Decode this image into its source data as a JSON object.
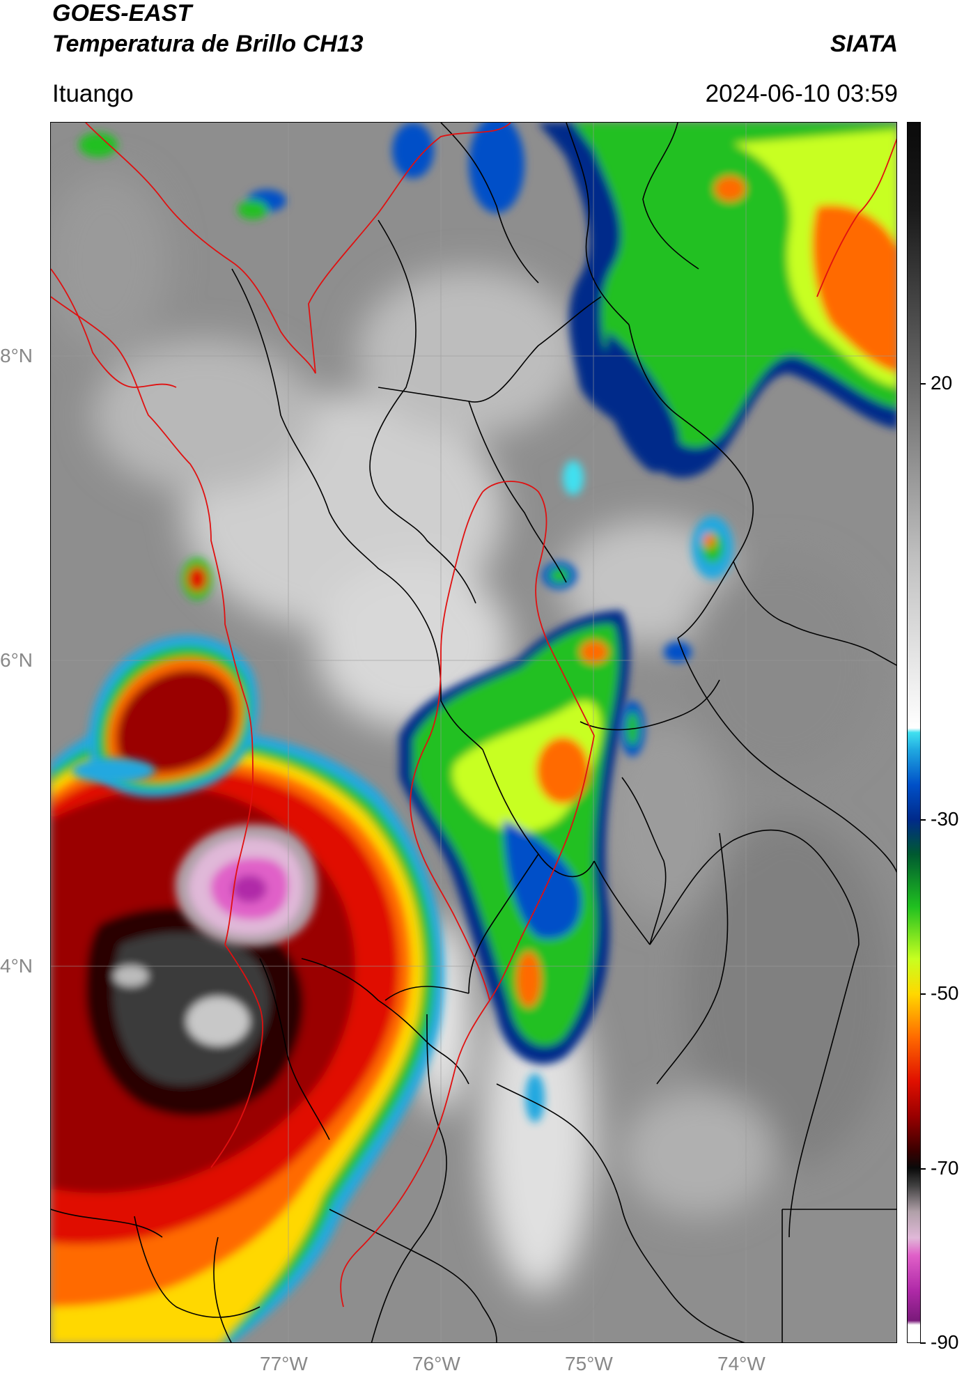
{
  "header": {
    "title_line1": "GOES-EAST",
    "title_line2": "Temperatura de Brillo CH13",
    "region": "Ituango",
    "brand": "SIATA",
    "datetime": "2024-06-10 03:59"
  },
  "map": {
    "lat_labels": [
      "8°N",
      "6°N",
      "4°N"
    ],
    "lon_labels": [
      "77°W",
      "76°W",
      "75°W",
      "74°W"
    ],
    "colors": {
      "border_red": "#e01010",
      "border_black": "#000000",
      "grid": "#9a9a9a"
    }
  },
  "colorbar": {
    "labels": [
      "20",
      "-30",
      "-50",
      "-70",
      "-90"
    ],
    "label_values": [
      20,
      -30,
      -50,
      -70,
      -90
    ],
    "range": [
      -90,
      50
    ],
    "stops": [
      {
        "v": -90,
        "color": "#ffffff"
      },
      {
        "v": -88,
        "color": "#ffffff"
      },
      {
        "v": -87.5,
        "color": "#7a1a7a"
      },
      {
        "v": -84,
        "color": "#b02aa8"
      },
      {
        "v": -80,
        "color": "#e060c8"
      },
      {
        "v": -78,
        "color": "#e0b8d8"
      },
      {
        "v": -75,
        "color": "#b0a0a8"
      },
      {
        "v": -72,
        "color": "#404040"
      },
      {
        "v": -70,
        "color": "#0a0a0a"
      },
      {
        "v": -68,
        "color": "#3a0000"
      },
      {
        "v": -64,
        "color": "#9a0000"
      },
      {
        "v": -60,
        "color": "#e01000"
      },
      {
        "v": -55,
        "color": "#ff6a00"
      },
      {
        "v": -50,
        "color": "#ffd800"
      },
      {
        "v": -46,
        "color": "#c8ff20"
      },
      {
        "v": -40,
        "color": "#20c020"
      },
      {
        "v": -34,
        "color": "#005a30"
      },
      {
        "v": -30,
        "color": "#002a8a"
      },
      {
        "v": -26,
        "color": "#0050c8"
      },
      {
        "v": -22,
        "color": "#20a8e0"
      },
      {
        "v": -20,
        "color": "#40e0f0"
      },
      {
        "v": -19.5,
        "color": "#ffffff"
      },
      {
        "v": 0,
        "color": "#c0c0c0"
      },
      {
        "v": 20,
        "color": "#6a6a6a"
      },
      {
        "v": 40,
        "color": "#1a1a1a"
      },
      {
        "v": 50,
        "color": "#0a0a0a"
      }
    ]
  }
}
